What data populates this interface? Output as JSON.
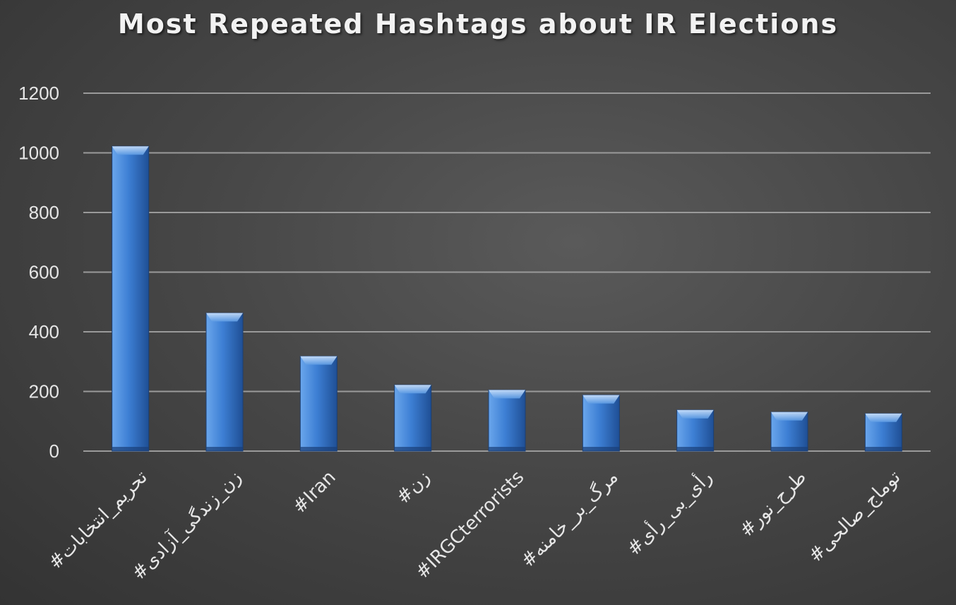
{
  "chart_data": {
    "type": "bar",
    "title": "Most Repeated Hashtags about IR Elections",
    "xlabel": "",
    "ylabel": "",
    "categories": [
      "#تحریم_انتخابات",
      "#زن_زندگی_آزادی",
      "#Iran",
      "#زن",
      "#IRGCterrorists",
      "#مرگ_بر_خامنه",
      "#رأی_بی_رأی",
      "#طرح_نور",
      "#توماج_صالحی"
    ],
    "values": [
      1022,
      463,
      318,
      222,
      205,
      188,
      138,
      131,
      126
    ],
    "ylim": [
      0,
      1200
    ],
    "yticks": [
      0,
      200,
      400,
      600,
      800,
      1000,
      1200
    ],
    "grid": true,
    "colors": {
      "bar": "#3d7fd4",
      "bar_light": "#6aa6ec",
      "bar_dark": "#1f4f95",
      "grid": "#9a9a9a",
      "text": "#e6e6e6"
    }
  }
}
